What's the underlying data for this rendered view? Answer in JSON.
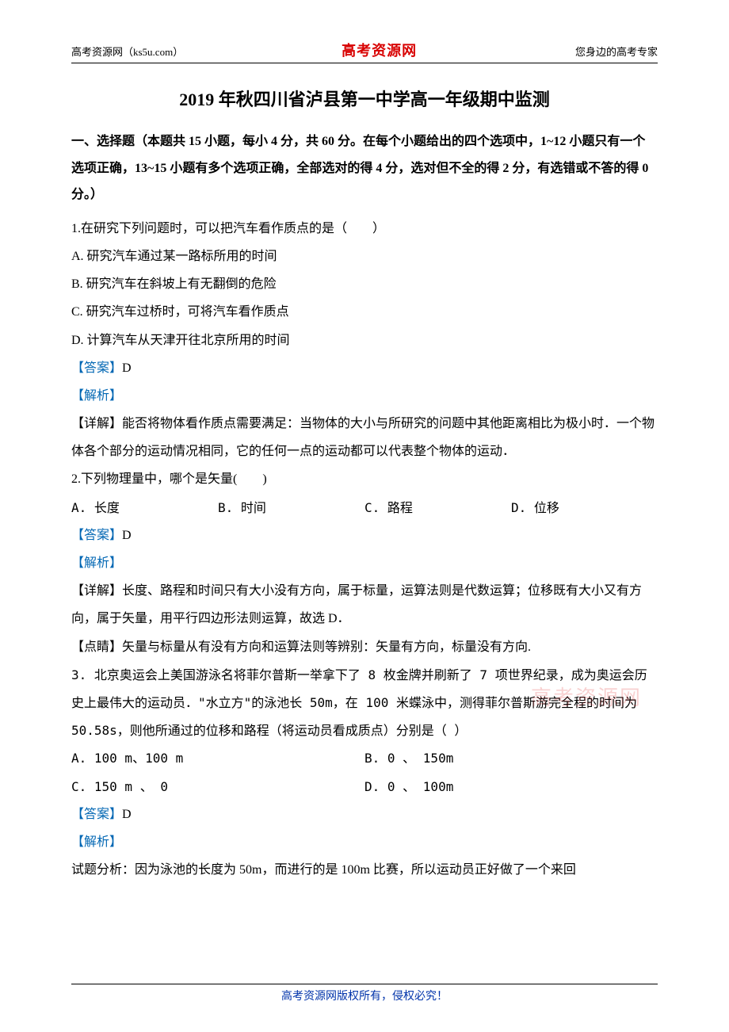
{
  "colors": {
    "text": "#000000",
    "accent_red": "#d80000",
    "link_blue": "#0066b3",
    "footer_blue": "#0033aa",
    "watermark": "rgba(216,0,0,0.18)",
    "background": "#ffffff"
  },
  "header": {
    "left": "高考资源网（ks5u.com）",
    "center": "高考资源网",
    "right": "您身边的高考专家"
  },
  "title": "2019 年秋四川省泸县第一中学高一年级期中监测",
  "section_instructions": "一、选择题（本题共 15 小题，每小 4 分，共 60 分。在每个小题给出的四个选项中，1~12 小题只有一个选项正确，13~15 小题有多个选项正确，全部选对的得 4 分，选对但不全的得 2 分，有选错或不答的得 0 分。）",
  "q1": {
    "stem": "1.在研究下列问题时，可以把汽车看作质点的是（　　）",
    "opts": {
      "A": "A. 研究汽车通过某一路标所用的时间",
      "B": "B. 研究汽车在斜坡上有无翻倒的危险",
      "C": "C. 研究汽车过桥时，可将汽车看作质点",
      "D": "D. 计算汽车从天津开往北京所用的时间"
    },
    "answer_label": "【答案】",
    "answer": "D",
    "analysis_label": "【解析】",
    "detail": "【详解】能否将物体看作质点需要满足：当物体的大小与所研究的问题中其他距离相比为极小时．一个物体各个部分的运动情况相同，它的任何一点的运动都可以代表整个物体的运动．"
  },
  "q2": {
    "stem": "2.下列物理量中，哪个是矢量(　　)",
    "opts": {
      "A": "A. 长度",
      "B": "B. 时间",
      "C": "C. 路程",
      "D": "D. 位移"
    },
    "answer_label": "【答案】",
    "answer": "D",
    "analysis_label": "【解析】",
    "detail": "【详解】长度、路程和时间只有大小没有方向，属于标量，运算法则是代数运算；位移既有大小又有方向，属于矢量，用平行四边形法则运算，故选 D．",
    "tip": "【点睛】矢量与标量从有没有方向和运算法则等辨别：矢量有方向，标量没有方向."
  },
  "q3": {
    "stem": "3. 北京奥运会上美国游泳名将菲尔普斯一举拿下了 8 枚金牌并刷新了 7 项世界纪录，成为奥运会历史上最伟大的运动员．\"水立方\"的泳池长 50m，在 100 米蝶泳中，测得菲尔普斯游完全程的时间为 50.58s，则他所通过的位移和路程（将运动员看成质点）分别是（ ）",
    "opts": {
      "A": "A. 100 m、100 m",
      "B": "B. 0 、 150m",
      "C": "C. 150 m 、 0",
      "D": "D. 0 、 100m"
    },
    "answer_label": "【答案】",
    "answer": "D",
    "analysis_label": "【解析】",
    "detail": "试题分析：因为泳池的长度为 50m，而进行的是 100m 比赛，所以运动员正好做了一个来回"
  },
  "watermark": "高考资源网",
  "footer": "高考资源网版权所有，侵权必究！"
}
